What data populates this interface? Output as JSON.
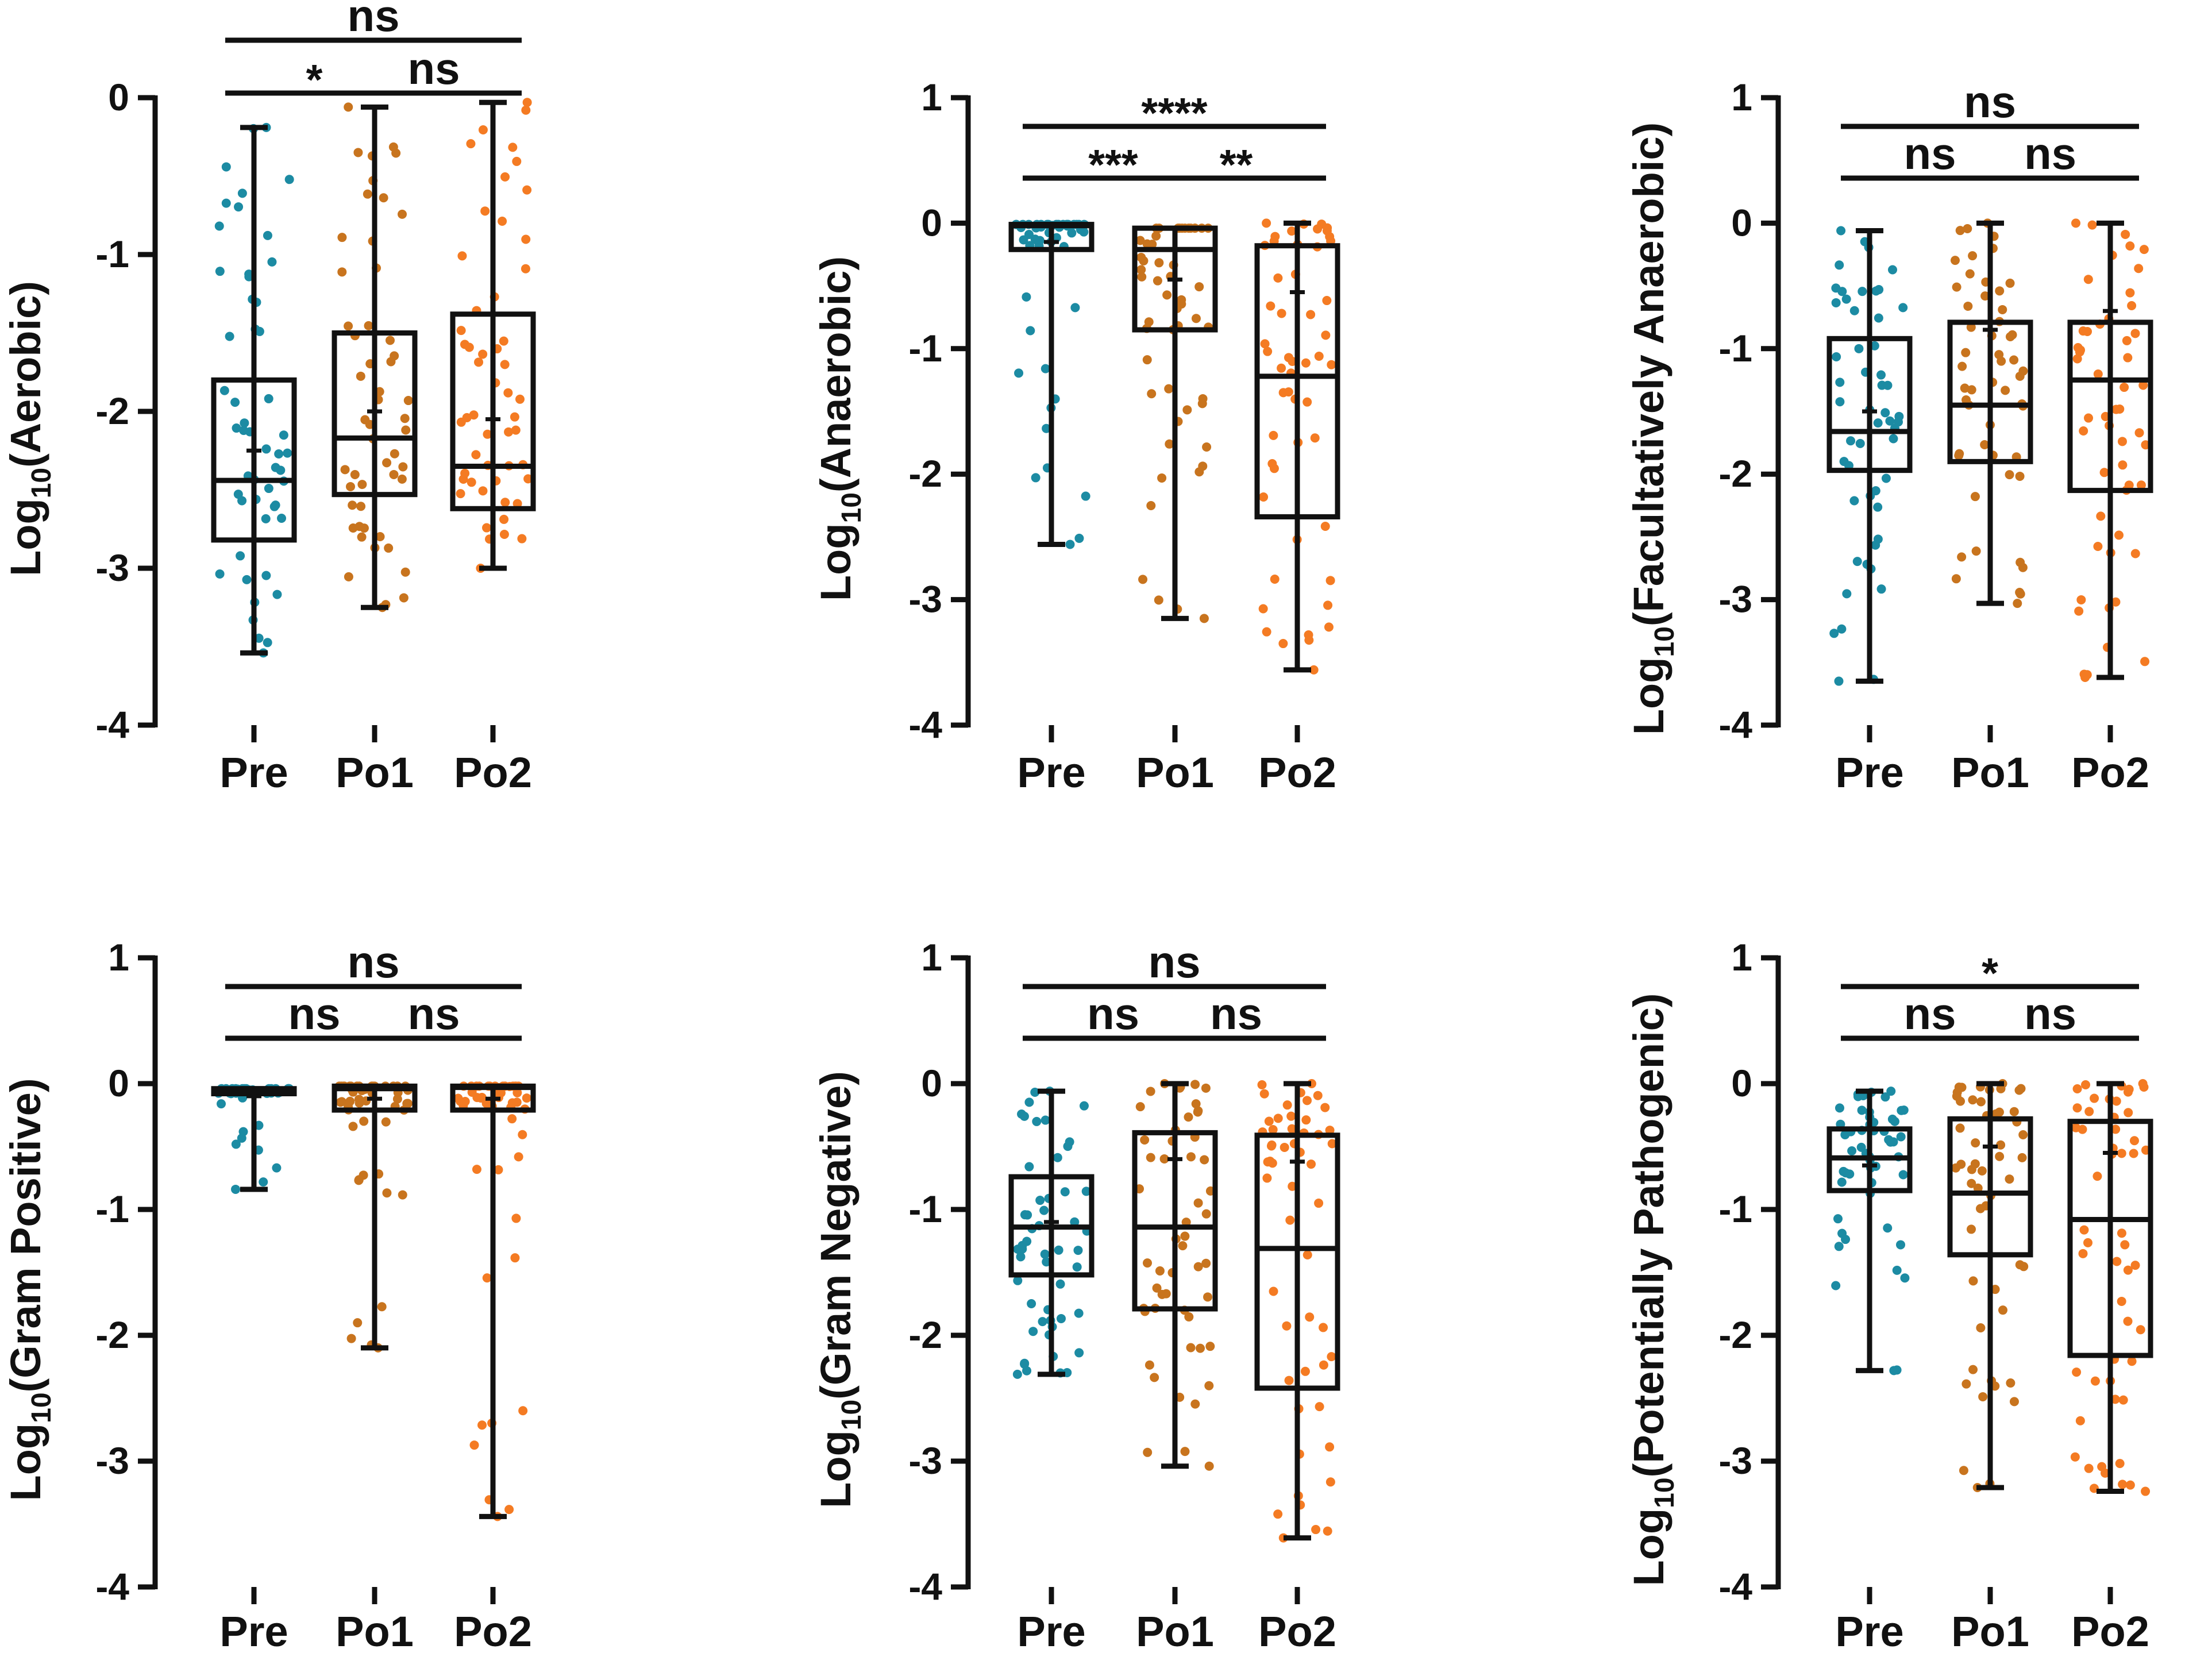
{
  "colors": {
    "Pre": "#1C8BA3",
    "Po1": "#C8741E",
    "Po2": "#F47B23",
    "axis": "#111111"
  },
  "chart_data": [
    {
      "type": "box",
      "ylabel_prefix": "Log",
      "ylabel_sub": "10",
      "ylabel_suffix": "(Aerobic)",
      "ylim": [
        -4,
        0
      ],
      "ticks": [
        {
          "v": 0,
          "label": "0"
        },
        {
          "v": -1,
          "label": "-1"
        },
        {
          "v": -2,
          "label": "-2"
        },
        {
          "v": -3,
          "label": "-3"
        },
        {
          "v": -4,
          "label": "-4"
        }
      ],
      "categories": [
        "Pre",
        "Po1",
        "Po2"
      ],
      "boxes": [
        {
          "min": -3.54,
          "q1": -2.82,
          "median": -2.44,
          "q3": -1.8,
          "max": -0.19,
          "mean": -2.25
        },
        {
          "min": -3.25,
          "q1": -2.53,
          "median": -2.17,
          "q3": -1.5,
          "max": -0.06,
          "mean": -2.0
        },
        {
          "min": -3.0,
          "q1": -2.62,
          "median": -2.35,
          "q3": -1.38,
          "max": -0.03,
          "mean": -2.05
        }
      ],
      "comparisons": [
        {
          "from": 0,
          "to": 1,
          "label": "*",
          "level": 0
        },
        {
          "from": 1,
          "to": 2,
          "label": "ns",
          "level": 0
        },
        {
          "from": 0,
          "to": 2,
          "label": "ns",
          "level": 1
        }
      ]
    },
    {
      "type": "box",
      "ylabel_prefix": "Log",
      "ylabel_sub": "10",
      "ylabel_suffix": "(Anaerobic)",
      "ylim": [
        -4,
        1
      ],
      "ticks": [
        {
          "v": 1,
          "label": "1"
        },
        {
          "v": 0,
          "label": "0"
        },
        {
          "v": -1,
          "label": "-1"
        },
        {
          "v": -2,
          "label": "-2"
        },
        {
          "v": -3,
          "label": "-3"
        },
        {
          "v": -4,
          "label": "-4"
        }
      ],
      "categories": [
        "Pre",
        "Po1",
        "Po2"
      ],
      "boxes": [
        {
          "min": -2.56,
          "q1": -0.21,
          "median": -0.02,
          "q3": -0.01,
          "max": -0.01,
          "mean": -0.15
        },
        {
          "min": -3.15,
          "q1": -0.85,
          "median": -0.21,
          "q3": -0.04,
          "max": -0.04,
          "mean": -0.45
        },
        {
          "min": -3.56,
          "q1": -2.34,
          "median": -1.22,
          "q3": -0.18,
          "max": 0.0,
          "mean": -0.55
        }
      ],
      "comparisons": [
        {
          "from": 0,
          "to": 1,
          "label": "***",
          "level": 0
        },
        {
          "from": 1,
          "to": 2,
          "label": "**",
          "level": 0
        },
        {
          "from": 0,
          "to": 2,
          "label": "****",
          "level": 1
        }
      ]
    },
    {
      "type": "box",
      "ylabel_prefix": "Log",
      "ylabel_sub": "10",
      "ylabel_suffix": "(Facultatively Anaerobic)",
      "ylim": [
        -4,
        1
      ],
      "ticks": [
        {
          "v": 1,
          "label": "1"
        },
        {
          "v": 0,
          "label": "0"
        },
        {
          "v": -1,
          "label": "-1"
        },
        {
          "v": -2,
          "label": "-2"
        },
        {
          "v": -3,
          "label": "-3"
        },
        {
          "v": -4,
          "label": "-4"
        }
      ],
      "categories": [
        "Pre",
        "Po1",
        "Po2"
      ],
      "boxes": [
        {
          "min": -3.65,
          "q1": -1.97,
          "median": -1.66,
          "q3": -0.92,
          "max": -0.06,
          "mean": -1.5
        },
        {
          "min": -3.03,
          "q1": -1.9,
          "median": -1.45,
          "q3": -0.79,
          "max": 0.0,
          "mean": -0.85
        },
        {
          "min": -3.62,
          "q1": -2.13,
          "median": -1.25,
          "q3": -0.79,
          "max": 0.0,
          "mean": -0.7
        }
      ],
      "comparisons": [
        {
          "from": 0,
          "to": 1,
          "label": "ns",
          "level": 0
        },
        {
          "from": 1,
          "to": 2,
          "label": "ns",
          "level": 0
        },
        {
          "from": 0,
          "to": 2,
          "label": "ns",
          "level": 1
        }
      ]
    },
    {
      "type": "box",
      "ylabel_prefix": "Log",
      "ylabel_sub": "10",
      "ylabel_suffix": "(Gram Positive)",
      "ylim": [
        -4,
        1
      ],
      "ticks": [
        {
          "v": 1,
          "label": "1"
        },
        {
          "v": 0,
          "label": "0"
        },
        {
          "v": -1,
          "label": "-1"
        },
        {
          "v": -2,
          "label": "-2"
        },
        {
          "v": -3,
          "label": "-3"
        },
        {
          "v": -4,
          "label": "-4"
        }
      ],
      "categories": [
        "Pre",
        "Po1",
        "Po2"
      ],
      "boxes": [
        {
          "min": -0.84,
          "q1": -0.08,
          "median": -0.05,
          "q3": -0.04,
          "max": -0.04,
          "mean": -0.1
        },
        {
          "min": -2.1,
          "q1": -0.21,
          "median": -0.04,
          "q3": -0.02,
          "max": -0.02,
          "mean": -0.12
        },
        {
          "min": -3.44,
          "q1": -0.21,
          "median": -0.03,
          "q3": -0.02,
          "max": -0.02,
          "mean": -0.12
        }
      ],
      "comparisons": [
        {
          "from": 0,
          "to": 1,
          "label": "ns",
          "level": 0
        },
        {
          "from": 1,
          "to": 2,
          "label": "ns",
          "level": 0
        },
        {
          "from": 0,
          "to": 2,
          "label": "ns",
          "level": 1
        }
      ]
    },
    {
      "type": "box",
      "ylabel_prefix": "Log",
      "ylabel_sub": "10",
      "ylabel_suffix": "(Gram Negative)",
      "ylim": [
        -4,
        1
      ],
      "ticks": [
        {
          "v": 1,
          "label": "1"
        },
        {
          "v": 0,
          "label": "0"
        },
        {
          "v": -1,
          "label": "-1"
        },
        {
          "v": -2,
          "label": "-2"
        },
        {
          "v": -3,
          "label": "-3"
        },
        {
          "v": -4,
          "label": "-4"
        }
      ],
      "categories": [
        "Pre",
        "Po1",
        "Po2"
      ],
      "boxes": [
        {
          "min": -2.31,
          "q1": -1.52,
          "median": -1.14,
          "q3": -0.74,
          "max": -0.06,
          "mean": -1.1
        },
        {
          "min": -3.04,
          "q1": -1.79,
          "median": -1.14,
          "q3": -0.39,
          "max": 0.0,
          "mean": -0.6
        },
        {
          "min": -3.61,
          "q1": -2.42,
          "median": -1.31,
          "q3": -0.41,
          "max": 0.0,
          "mean": -0.62
        }
      ],
      "comparisons": [
        {
          "from": 0,
          "to": 1,
          "label": "ns",
          "level": 0
        },
        {
          "from": 1,
          "to": 2,
          "label": "ns",
          "level": 0
        },
        {
          "from": 0,
          "to": 2,
          "label": "ns",
          "level": 1
        }
      ]
    },
    {
      "type": "box",
      "ylabel_prefix": "Log",
      "ylabel_sub": "10",
      "ylabel_suffix": "(Potentially Pathogenic)",
      "ylim": [
        -4,
        1
      ],
      "ticks": [
        {
          "v": 1,
          "label": "1"
        },
        {
          "v": 0,
          "label": "0"
        },
        {
          "v": -1,
          "label": "-1"
        },
        {
          "v": -2,
          "label": "-2"
        },
        {
          "v": -3,
          "label": "-3"
        },
        {
          "v": -4,
          "label": "-4"
        }
      ],
      "categories": [
        "Pre",
        "Po1",
        "Po2"
      ],
      "boxes": [
        {
          "min": -2.28,
          "q1": -0.85,
          "median": -0.59,
          "q3": -0.36,
          "max": -0.06,
          "mean": -0.65
        },
        {
          "min": -3.21,
          "q1": -1.36,
          "median": -0.87,
          "q3": -0.28,
          "max": 0.0,
          "mean": -0.5
        },
        {
          "min": -3.24,
          "q1": -2.16,
          "median": -1.08,
          "q3": -0.3,
          "max": 0.0,
          "mean": -0.55
        }
      ],
      "comparisons": [
        {
          "from": 0,
          "to": 1,
          "label": "ns",
          "level": 0
        },
        {
          "from": 1,
          "to": 2,
          "label": "ns",
          "level": 0
        },
        {
          "from": 0,
          "to": 2,
          "label": "*",
          "level": 1
        }
      ]
    }
  ]
}
